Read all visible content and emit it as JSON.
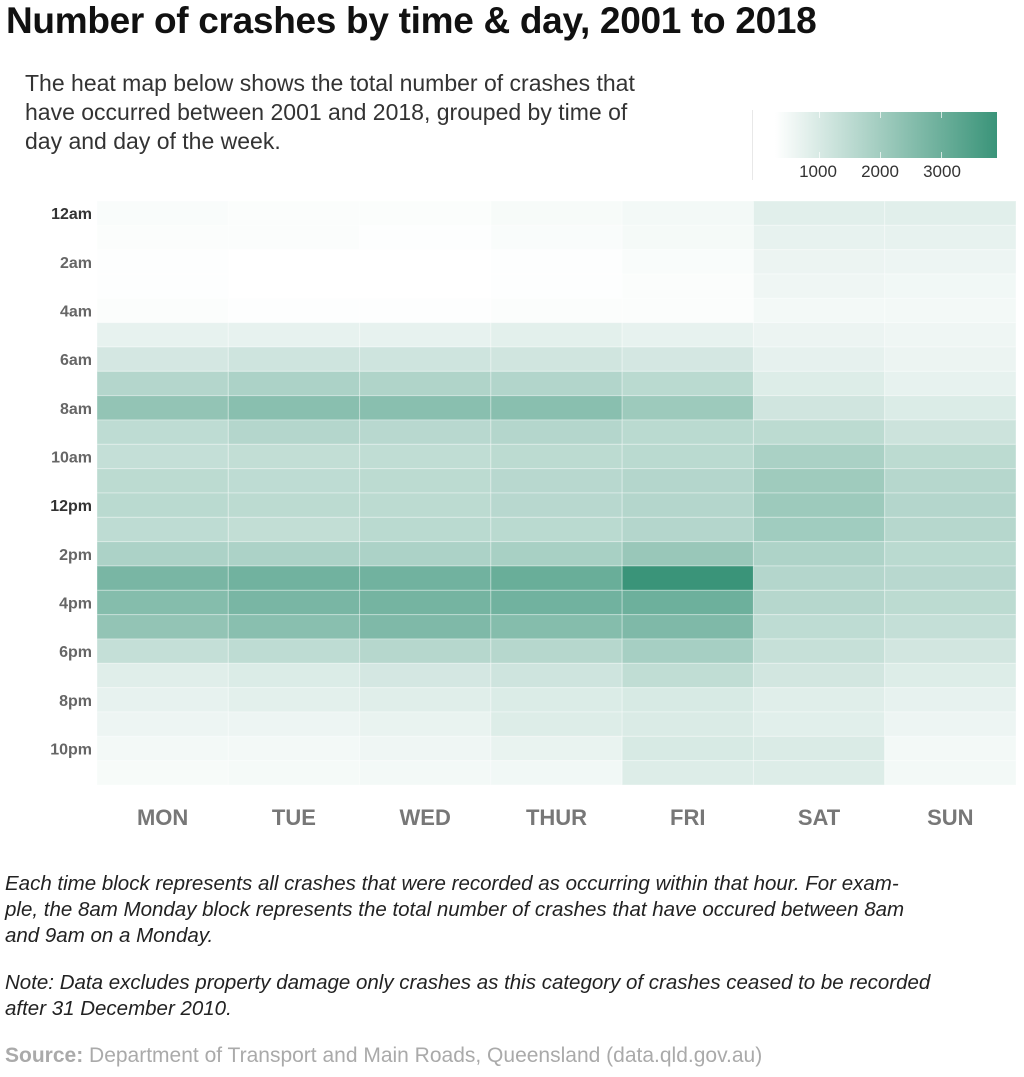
{
  "chart_data": {
    "type": "heatmap",
    "title": "Number of crashes by time & day, 2001 to 2018",
    "subtitle_lines": [
      "The heat map below shows the total number of crashes that",
      "have occurred between 2001 and 2018, grouped by time of",
      "day and day of the week."
    ],
    "columns": [
      "MON",
      "TUE",
      "WED",
      "THUR",
      "FRI",
      "SAT",
      "SUN"
    ],
    "row_tick_labels": [
      "12am",
      "2am",
      "4am",
      "6am",
      "8am",
      "10am",
      "12pm",
      "2pm",
      "4pm",
      "6pm",
      "8pm",
      "10pm"
    ],
    "bold_row_tick_labels": [
      "12am",
      "12pm"
    ],
    "rows_per_day": 24,
    "values": [
      [
        390,
        350,
        350,
        430,
        500,
        830,
        830
      ],
      [
        350,
        350,
        320,
        390,
        460,
        720,
        720
      ],
      [
        320,
        280,
        280,
        320,
        390,
        640,
        610
      ],
      [
        320,
        280,
        280,
        320,
        350,
        570,
        530
      ],
      [
        350,
        320,
        320,
        350,
        350,
        500,
        500
      ],
      [
        720,
        720,
        720,
        790,
        720,
        640,
        570
      ],
      [
        1080,
        1190,
        1190,
        1150,
        1080,
        750,
        640
      ],
      [
        1660,
        1810,
        1740,
        1700,
        1550,
        900,
        720
      ],
      [
        2280,
        2460,
        2460,
        2460,
        2100,
        1150,
        940
      ],
      [
        1480,
        1660,
        1590,
        1660,
        1550,
        1520,
        1230
      ],
      [
        1370,
        1410,
        1440,
        1520,
        1550,
        1850,
        1520
      ],
      [
        1520,
        1480,
        1520,
        1590,
        1660,
        2060,
        1630
      ],
      [
        1550,
        1520,
        1520,
        1590,
        1660,
        2100,
        1660
      ],
      [
        1480,
        1410,
        1550,
        1550,
        1660,
        2030,
        1630
      ],
      [
        1810,
        1810,
        1810,
        1880,
        2170,
        1770,
        1550
      ],
      [
        2760,
        2900,
        2900,
        3050,
        3920,
        1660,
        1590
      ],
      [
        2540,
        2760,
        2830,
        2900,
        2970,
        1630,
        1520
      ],
      [
        2280,
        2460,
        2650,
        2540,
        2650,
        1480,
        1370
      ],
      [
        1370,
        1480,
        1630,
        1630,
        1920,
        1340,
        1120
      ],
      [
        860,
        940,
        1080,
        1190,
        1440,
        1120,
        900
      ],
      [
        720,
        790,
        860,
        940,
        1010,
        860,
        720
      ],
      [
        610,
        610,
        680,
        900,
        970,
        830,
        610
      ],
      [
        500,
        500,
        570,
        680,
        1010,
        970,
        500
      ],
      [
        430,
        460,
        500,
        530,
        900,
        900,
        500
      ]
    ],
    "color_scale": {
      "min": 280,
      "max": 3920,
      "low_color": "#ffffff",
      "high_color": "#3a9479"
    },
    "legend": {
      "ticks": [
        "1000",
        "2000",
        "3000"
      ],
      "position": "top-right"
    }
  },
  "footnotes": {
    "explanation_lines": [
      "Each time block represents all crashes that were recorded as occurring within that hour. For exam-",
      "ple, the 8am Monday block represents the total number of crashes that have occured between 8am",
      "and 9am on a Monday."
    ],
    "note_lines": [
      "Note: Data excludes property damage only crashes as this category of crashes ceased to be recorded",
      "after 31 December 2010."
    ],
    "source_label": "Source:",
    "source_text": " Department of Transport and Main Roads, Queensland (data.qld.gov.au)"
  }
}
